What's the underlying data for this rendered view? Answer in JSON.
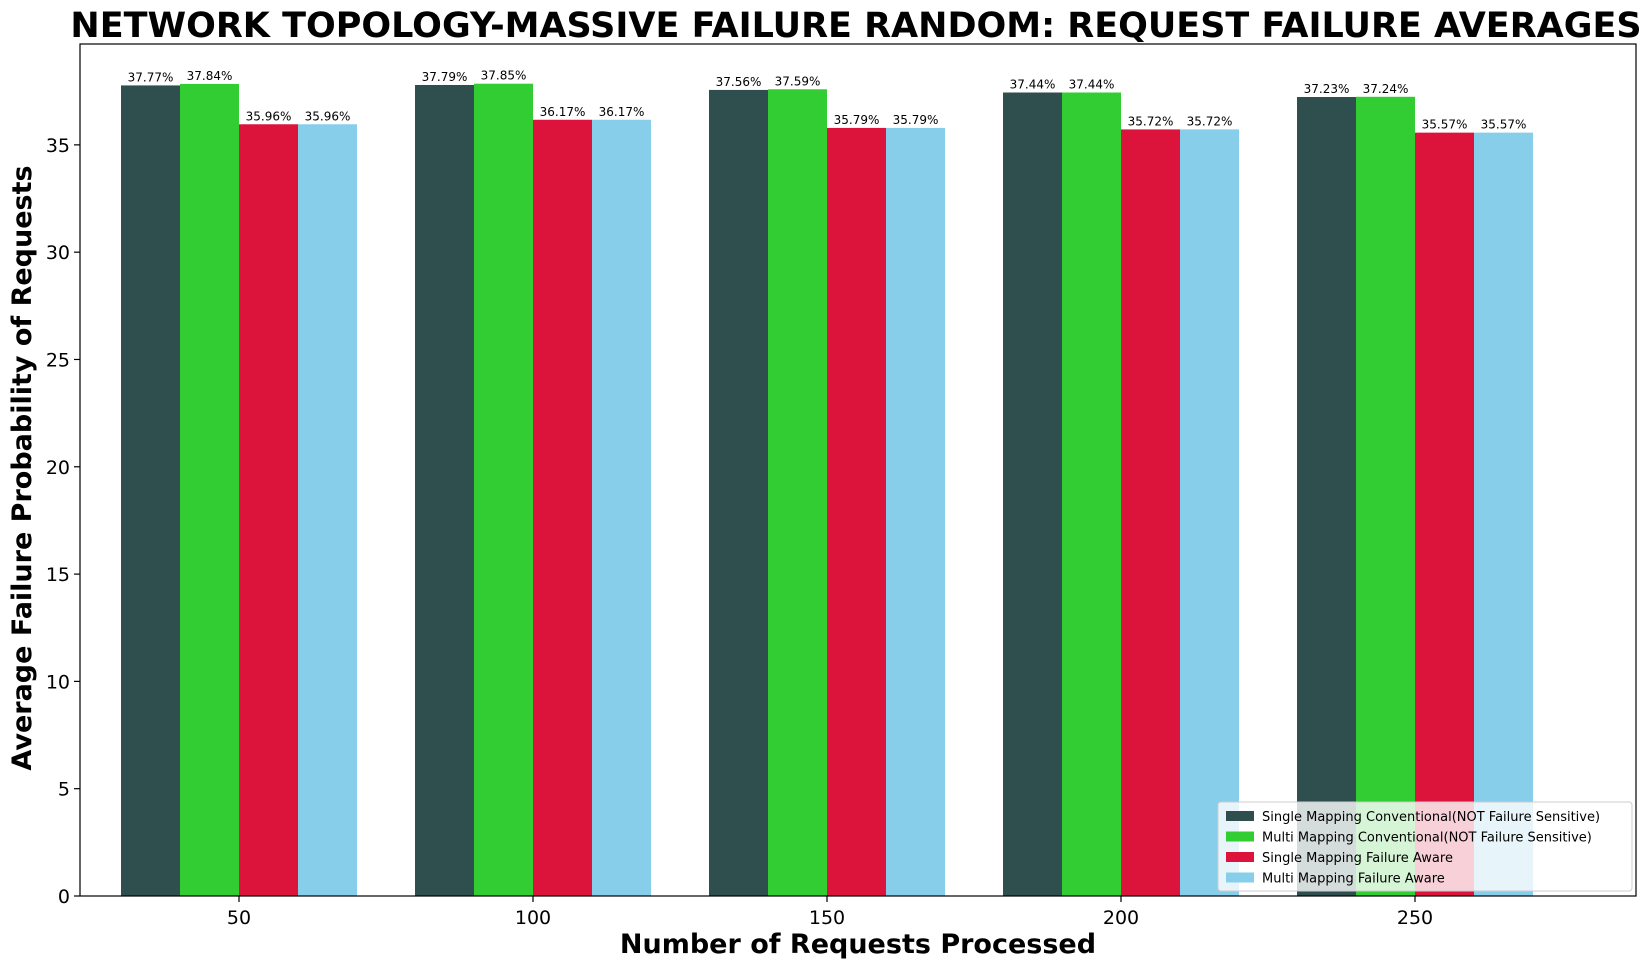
{
  "chart_data": {
    "type": "bar",
    "title": "NETWORK TOPOLOGY-MASSIVE FAILURE RANDOM: REQUEST FAILURE AVERAGES",
    "xlabel": "Number of Requests Processed",
    "ylabel": "Average Failure Probability of Requests",
    "categories": [
      "50",
      "100",
      "150",
      "200",
      "250"
    ],
    "ylim": [
      0,
      39.7
    ],
    "yticks": [
      0,
      5,
      10,
      15,
      20,
      25,
      30,
      35
    ],
    "grid": false,
    "legend_position": "bottom-right",
    "series": [
      {
        "name": "Single Mapping Conventional(NOT Failure Sensitive)",
        "color": "#2f4f4f",
        "values": [
          37.77,
          37.79,
          37.56,
          37.44,
          37.23
        ],
        "labels": [
          "37.77%",
          "37.79%",
          "37.56%",
          "37.44%",
          "37.23%"
        ]
      },
      {
        "name": "Multi Mapping Conventional(NOT Failure Sensitive)",
        "color": "#32cd32",
        "values": [
          37.84,
          37.85,
          37.59,
          37.44,
          37.24
        ],
        "labels": [
          "37.84%",
          "37.85%",
          "37.59%",
          "37.44%",
          "37.24%"
        ]
      },
      {
        "name": "Single Mapping Failure Aware",
        "color": "#dc143c",
        "values": [
          35.96,
          36.17,
          35.79,
          35.72,
          35.57
        ],
        "labels": [
          "35.96%",
          "36.17%",
          "35.79%",
          "35.72%",
          "35.57%"
        ]
      },
      {
        "name": "Multi Mapping Failure Aware",
        "color": "#87ceeb",
        "values": [
          35.96,
          36.17,
          35.79,
          35.72,
          35.57
        ],
        "labels": [
          "35.96%",
          "36.17%",
          "35.79%",
          "35.72%",
          "35.57%"
        ]
      }
    ]
  }
}
